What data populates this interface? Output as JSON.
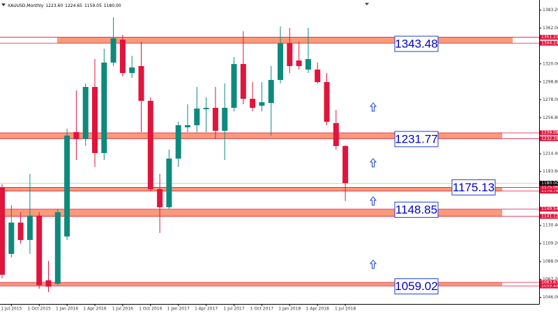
{
  "chart_data": {
    "type": "candlestick",
    "title": "XAUUSD,Monthly",
    "last_labels": {
      "open": "1223.60",
      "high": "1224.65",
      "low": "1159.05",
      "close": "1180.00"
    },
    "categories": [
      null,
      "1 Jul 2015",
      null,
      null,
      "1 Oct 2015",
      null,
      null,
      "1 Jan 2016",
      null,
      null,
      "1 Apr 2016",
      null,
      null,
      "1 Jul 2016",
      null,
      null,
      "1 Oct 2016",
      null,
      null,
      "1 Jan 2017",
      null,
      null,
      "1 Apr 2017",
      null,
      null,
      "1 Jul 2017",
      null,
      null,
      "1 Oct 2017",
      null,
      null,
      "1 Jan 2018",
      null,
      null,
      "1 Apr 2018",
      null,
      null,
      "1 Jul 2018"
    ],
    "open": [
      1174.6,
      1097.1,
      1133.8,
      1113.4,
      1142.0,
      1066.1,
      1062.0,
      1117.5,
      1239.9,
      1231.7,
      1292.9,
      1215.4,
      1321.5,
      1348.4,
      1309.2,
      1317.4,
      1276.6,
      1173.0,
      1151.8,
      1208.9,
      1245.6,
      1248.0,
      1266.8,
      1268.4,
      1241.5,
      1268.4,
      1319.8,
      1279.0,
      1270.9,
      1274.1,
      1301.1,
      1344.3,
      1323.9,
      1313.3,
      1313.3,
      1298.6,
      1250.5,
      1223.6
    ],
    "high": [
      1178.7,
      1154.2,
      1146.0,
      1190.9,
      1146.0,
      1088.9,
      1150.1,
      1244.0,
      1288.8,
      1297.0,
      1325.6,
      1337.8,
      1374.5,
      1354.1,
      1329.6,
      1345.9,
      1280.7,
      1190.9,
      1219.5,
      1252.1,
      1272.5,
      1292.9,
      1280.7,
      1292.9,
      1297.0,
      1328.0,
      1358.2,
      1298.6,
      1298.6,
      1317.4,
      1363.9,
      1362.3,
      1345.9,
      1362.3,
      1321.5,
      1309.2,
      1266.0,
      1224.65
    ],
    "low": [
      1068.5,
      1093.0,
      1109.3,
      1097.1,
      1056.3,
      1052.2,
      1060.4,
      1113.4,
      1207.2,
      1223.6,
      1199.1,
      1207.2,
      1317.4,
      1305.2,
      1303.5,
      1239.9,
      1170.5,
      1121.6,
      1150.1,
      1199.1,
      1239.9,
      1239.9,
      1239.9,
      1231.7,
      1207.2,
      1264.4,
      1272.5,
      1264.4,
      1264.4,
      1235.8,
      1297.0,
      1309.2,
      1313.3,
      1309.2,
      1297.0,
      1248.0,
      1219.5,
      1159.05
    ],
    "close": [
      1072.6,
      1133.8,
      1113.4,
      1142.0,
      1060.4,
      1058.7,
      1146.0,
      1235.8,
      1231.7,
      1292.9,
      1215.4,
      1321.5,
      1350.0,
      1309.2,
      1315.8,
      1276.6,
      1173.0,
      1151.8,
      1208.9,
      1248.0,
      1248.0,
      1267.6,
      1268.4,
      1241.5,
      1268.4,
      1319.8,
      1279.0,
      1268.4,
      1275.0,
      1301.1,
      1344.3,
      1317.4,
      1317.4,
      1325.6,
      1298.6,
      1252.1,
      1223.6,
      1180.0
    ],
    "up_color": "#0e8a7d",
    "down_color": "#e0143c",
    "zone_color": "#fa9a78",
    "levels": [
      {
        "value": 1343.48,
        "band": [
          1344.24,
          1351.21
        ]
      },
      {
        "value": 1231.77,
        "band": [
          1232.28,
          1239.08
        ]
      },
      {
        "value": 1175.13,
        "band": [
          1170.76,
          1175.06
        ]
      },
      {
        "value": 1148.85,
        "band": [
          1141.12,
          1149.54
        ]
      },
      {
        "value": 1059.02,
        "band": [
          1059.48,
          1063.67
        ]
      }
    ],
    "ylim": [
      1040,
      1390
    ],
    "yticks": [
      {
        "value": 1383.2,
        "label": "1383.20"
      },
      {
        "value": 1362,
        "label": "1362.00"
      },
      {
        "value": 1320,
        "label": "1320.00"
      },
      {
        "value": 1298.8,
        "label": "1298.80"
      },
      {
        "value": 1278,
        "label": "1278.00"
      },
      {
        "value": 1256.8,
        "label": "1256.80"
      },
      {
        "value": 1214.4,
        "label": "1214.40"
      },
      {
        "value": 1193.6,
        "label": "1193.60"
      },
      {
        "value": 1130.4,
        "label": "1130.40"
      },
      {
        "value": 1109.2,
        "label": "1109.20"
      },
      {
        "value": 1088,
        "label": "1088.00"
      },
      {
        "value": 1067.2,
        "label": "1067.20"
      },
      {
        "value": 1046,
        "label": "1046.00"
      }
    ]
  }
}
